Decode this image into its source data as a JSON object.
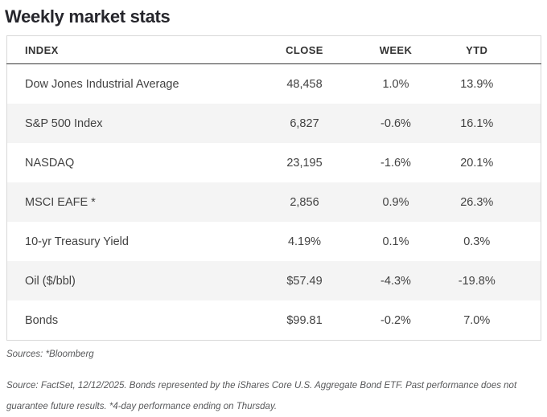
{
  "title": "Weekly market stats",
  "table": {
    "columns": {
      "index": "INDEX",
      "close": "CLOSE",
      "week": "WEEK",
      "ytd": "YTD"
    },
    "rows": [
      {
        "index": "Dow Jones Industrial Average",
        "close": "48,458",
        "week": "1.0%",
        "ytd": "13.9%"
      },
      {
        "index": "S&P 500 Index",
        "close": "6,827",
        "week": "-0.6%",
        "ytd": "16.1%"
      },
      {
        "index": "NASDAQ",
        "close": "23,195",
        "week": "-1.6%",
        "ytd": "20.1%"
      },
      {
        "index": "MSCI EAFE *",
        "close": "2,856",
        "week": "0.9%",
        "ytd": "26.3%"
      },
      {
        "index": "10-yr Treasury Yield",
        "close": "4.19%",
        "week": "0.1%",
        "ytd": "0.3%"
      },
      {
        "index": "Oil ($/bbl)",
        "close": "$57.49",
        "week": "-4.3%",
        "ytd": "-19.8%"
      },
      {
        "index": "Bonds",
        "close": "$99.81",
        "week": "-0.2%",
        "ytd": "7.0%"
      }
    ]
  },
  "footnotes": {
    "sources": "Sources: *Bloomberg",
    "disclaimer": "Source: FactSet, 12/12/2025. Bonds represented by the iShares Core U.S. Aggregate Bond ETF. Past performance does not guarantee future results. *4-day performance ending on Thursday."
  },
  "colors": {
    "title_text": "#26262c",
    "header_text": "#333333",
    "body_text": "#424242",
    "row_stripe": "#f4f4f4",
    "table_border": "#d8d8d8",
    "header_underline": "#383838",
    "footnote_text": "#58595b"
  },
  "chart_data": {
    "type": "table",
    "title": "Weekly market stats",
    "columns": [
      "INDEX",
      "CLOSE",
      "WEEK",
      "YTD"
    ],
    "rows": [
      [
        "Dow Jones Industrial Average",
        "48,458",
        "1.0%",
        "13.9%"
      ],
      [
        "S&P 500 Index",
        "6,827",
        "-0.6%",
        "16.1%"
      ],
      [
        "NASDAQ",
        "23,195",
        "-1.6%",
        "20.1%"
      ],
      [
        "MSCI EAFE *",
        "2,856",
        "0.9%",
        "26.3%"
      ],
      [
        "10-yr Treasury Yield",
        "4.19%",
        "0.1%",
        "0.3%"
      ],
      [
        "Oil ($/bbl)",
        "$57.49",
        "-4.3%",
        "-19.8%"
      ],
      [
        "Bonds",
        "$99.81",
        "-0.2%",
        "7.0%"
      ]
    ],
    "layout_hints": {
      "zebra_striping": true,
      "numeric_columns_alignment": "center",
      "index_column_alignment": "left"
    }
  }
}
